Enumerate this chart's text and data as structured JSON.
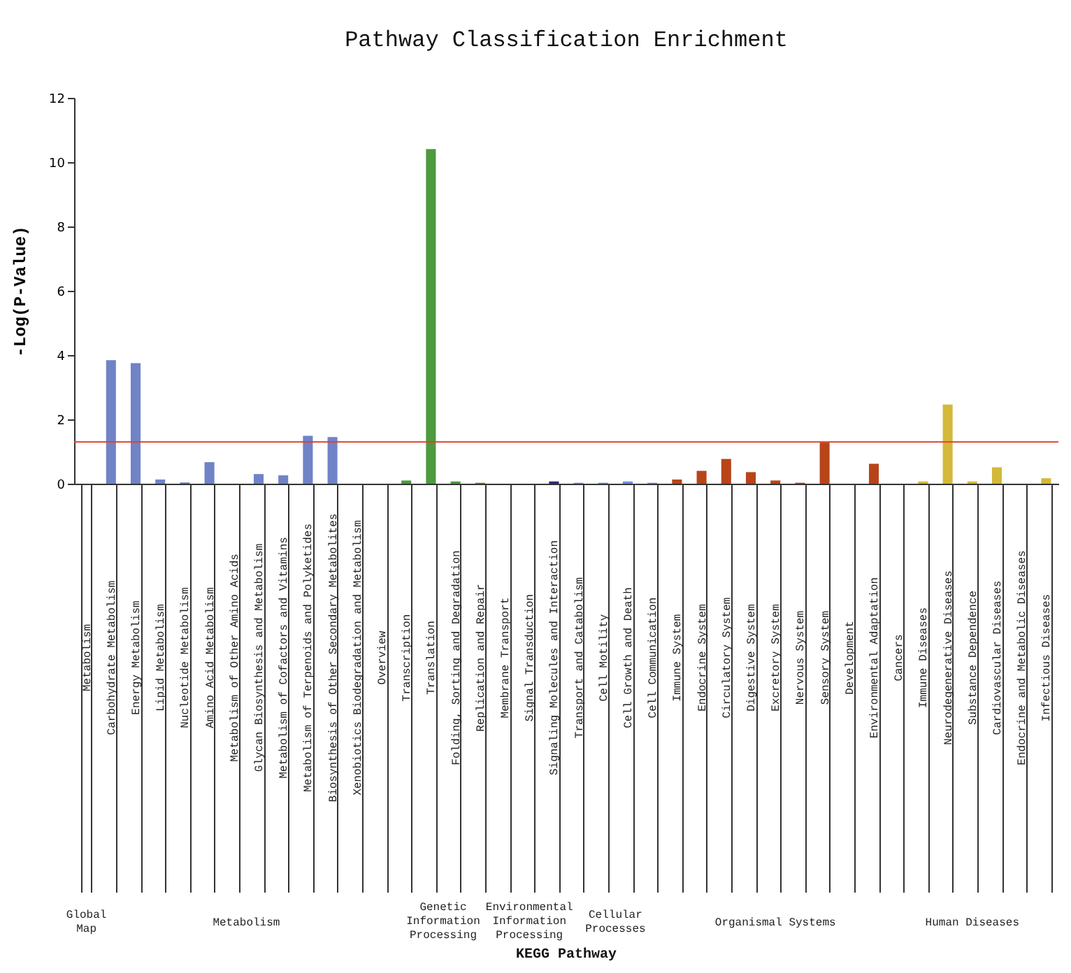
{
  "chart_data": {
    "type": "bar",
    "title": "Pathway Classification Enrichment",
    "ylabel": "-Log(P-Value)",
    "categories": [
      "Metabolism",
      "Carbohydrate Metabolism",
      "Energy Metabolism",
      "Lipid Metabolism",
      "Nucleotide Metabolism",
      "Amino Acid Metabolism",
      "Metabolism of Other Amino Acids",
      "Glycan Biosynthesis and Metabolism",
      "Metabolism of Cofactors and Vitamins",
      "Metabolism of Terpenoids and Polyketides",
      "Biosynthesis of Other Secondary Metabolites",
      "Xenobiotics Biodegradation and Metabolism",
      "Overview",
      "Transcription",
      "Translation",
      "Folding, Sorting and Degradation",
      "Replication and Repair",
      "Membrane Transport",
      "Signal Transduction",
      "Signaling Molecules and Interaction",
      "Transport and Catabolism",
      "Cell Motility",
      "Cell Growth and Death",
      "Cell Communication",
      "Immune System",
      "Endocrine System",
      "Circulatory System",
      "Digestive System",
      "Excretory System",
      "Nervous System",
      "Sensory System",
      "Development",
      "Environmental Adaptation",
      "Cancers",
      "Immune Diseases",
      "Neurodegenerative Diseases",
      "Substance Dependence",
      "Cardiovascular Diseases",
      "Endocrine and Metabolic Diseases",
      "Infectious Diseases"
    ],
    "values": [
      0,
      3.84,
      3.75,
      0.13,
      0.04,
      0.67,
      0,
      0.3,
      0.26,
      1.49,
      1.45,
      0,
      0,
      0.1,
      10.41,
      0.07,
      0.03,
      0,
      0,
      0.07,
      0.03,
      0.03,
      0.07,
      0.03,
      0.13,
      0.4,
      0.77,
      0.36,
      0.1,
      0.03,
      1.28,
      0,
      0.62,
      0,
      0.07,
      2.46,
      0.07,
      0.51,
      0,
      0.17
    ],
    "colors": [
      "#5a6fb8",
      "#7083c7",
      "#7083c7",
      "#7083c7",
      "#7083c7",
      "#7083c7",
      "#7083c7",
      "#7083c7",
      "#7083c7",
      "#7083c7",
      "#7083c7",
      "#7083c7",
      "#7083c7",
      "#4e9a3f",
      "#4e9a3f",
      "#4e9a3f",
      "#4e9a3f",
      "#2e2a7a",
      "#2e2a7a",
      "#2e2a7a",
      "#6f8fe0",
      "#6f8fe0",
      "#6f8fe0",
      "#6f8fe0",
      "#b8441a",
      "#b8441a",
      "#b8441a",
      "#b8441a",
      "#b8441a",
      "#b8441a",
      "#b8441a",
      "#b8441a",
      "#b8441a",
      "#d4b83a",
      "#d4b83a",
      "#d4b83a",
      "#d4b83a",
      "#d4b83a",
      "#d4b83a",
      "#d4b83a"
    ],
    "ylim": [
      0,
      12
    ],
    "yticks": [
      0,
      2,
      4,
      6,
      8,
      10,
      12
    ],
    "ref_lines": [
      {
        "axis": "y",
        "value": 1.3,
        "color": "#e0402a"
      }
    ],
    "annotations": [
      "Global Map",
      "Metabolism",
      "Genetic Information Processing",
      "Environmental Information Processing",
      "Cellular Processes",
      "Organismal Systems",
      "Human Diseases",
      "KEGG Pathway"
    ]
  }
}
